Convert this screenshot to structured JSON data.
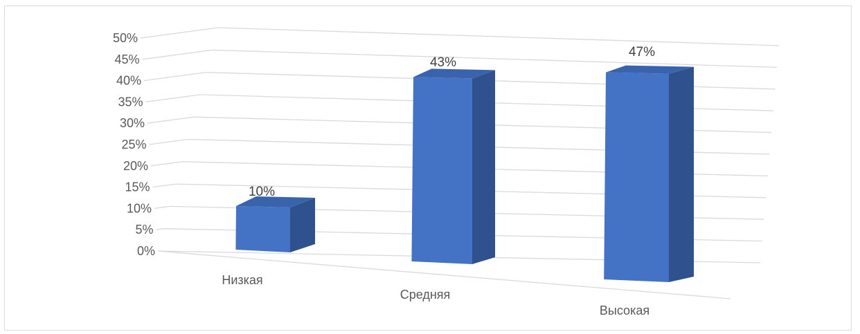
{
  "chart_data": {
    "type": "bar",
    "style": "3d-column",
    "categories": [
      "Низкая",
      "Средняя",
      "Высокая"
    ],
    "values": [
      10,
      43,
      47
    ],
    "data_labels": [
      "10%",
      "43%",
      "47%"
    ],
    "ylim": [
      0,
      50
    ],
    "y_ticks": [
      "0%",
      "5%",
      "10%",
      "15%",
      "20%",
      "25%",
      "30%",
      "35%",
      "40%",
      "45%",
      "50%"
    ],
    "title": "",
    "xlabel": "",
    "ylabel": "",
    "grid": true,
    "legend": "none",
    "colors": {
      "bar_front": "#4472C4",
      "bar_side": "#2F528F",
      "bar_top": "#3A63AD",
      "grid": "#D9D9D9",
      "text": "#595959"
    }
  }
}
